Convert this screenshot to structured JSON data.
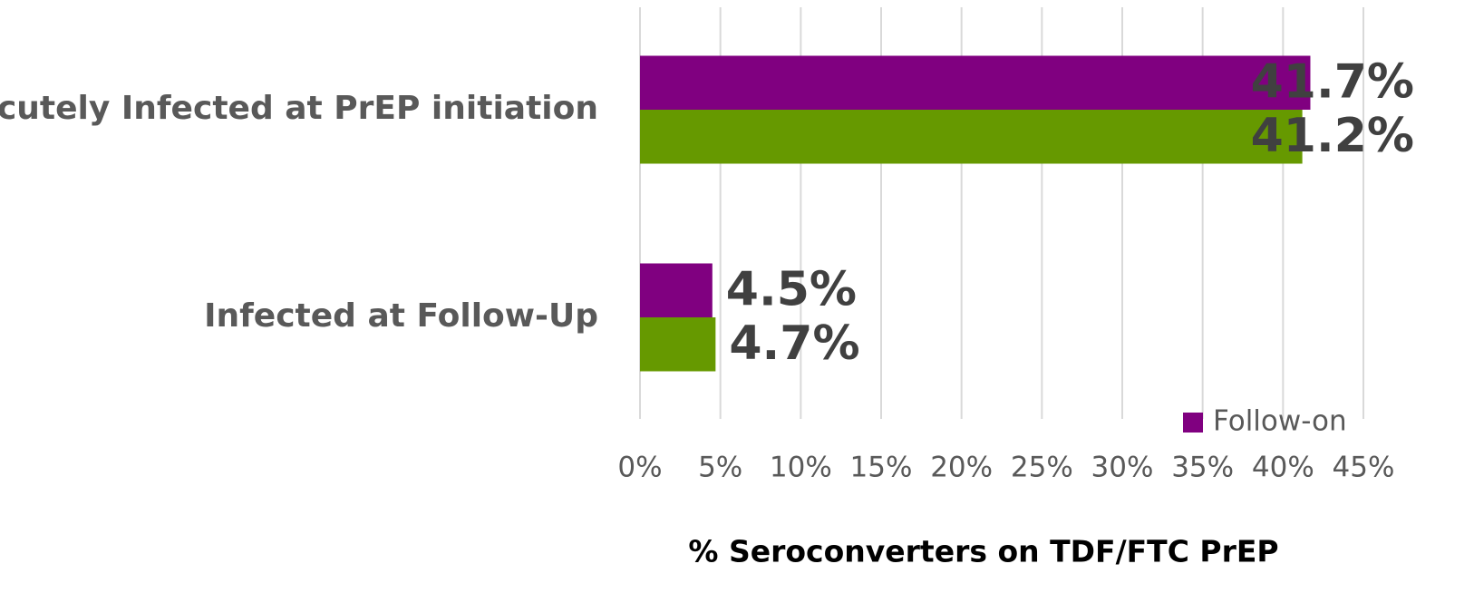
{
  "chart_data": {
    "type": "barh",
    "xlabel": "% Seroconverters on TDF/FTC PrEP",
    "categories": [
      "Acutely Infected at PrEP initiation",
      "Infected at Follow-Up"
    ],
    "series": [
      {
        "name": "Follow-on",
        "color": "#800080",
        "values": [
          41.7,
          4.5
        ],
        "value_labels": [
          "41.7%",
          "4.5%"
        ]
      },
      {
        "color": "#669900",
        "values": [
          41.2,
          4.7
        ],
        "value_labels": [
          "41.2%",
          "4.7%"
        ]
      }
    ],
    "xlim": [
      0,
      45
    ],
    "xticks": [
      {
        "value": 0,
        "label": "0%"
      },
      {
        "value": 5,
        "label": "5%"
      },
      {
        "value": 10,
        "label": "10%"
      },
      {
        "value": 15,
        "label": "15%"
      },
      {
        "value": 20,
        "label": "20%"
      },
      {
        "value": 25,
        "label": "25%"
      },
      {
        "value": 30,
        "label": "30%"
      },
      {
        "value": 35,
        "label": "35%"
      },
      {
        "value": 40,
        "label": "40%"
      },
      {
        "value": 45,
        "label": "45%"
      }
    ],
    "grid": true,
    "legend": "bottom-right"
  }
}
